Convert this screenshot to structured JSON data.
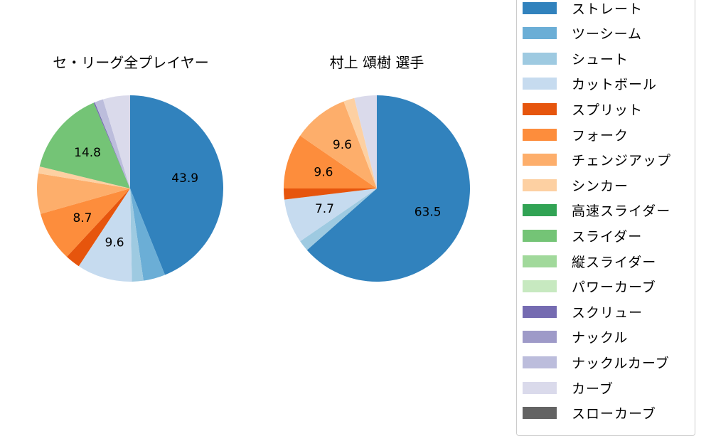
{
  "chart_data": [
    {
      "type": "pie",
      "title": "セ・リーグ全プレイヤー",
      "start_angle": 90,
      "direction": "clockwise",
      "categories": [
        "ストレート",
        "ツーシーム",
        "シュート",
        "カットボール",
        "スプリット",
        "フォーク",
        "チェンジアップ",
        "シンカー",
        "スライダー",
        "スクリュー",
        "ナックルカーブ",
        "カーブ"
      ],
      "values": [
        43.9,
        3.8,
        2.0,
        9.6,
        2.6,
        8.7,
        7.0,
        1.2,
        14.8,
        0.2,
        1.5,
        4.7
      ],
      "labels_shown": [
        "43.9",
        "",
        "",
        "9.6",
        "",
        "8.7",
        "",
        "",
        "14.8",
        "",
        "",
        ""
      ]
    },
    {
      "type": "pie",
      "title": "村上 頌樹  選手",
      "start_angle": 90,
      "direction": "clockwise",
      "categories": [
        "ストレート",
        "シュート",
        "カットボール",
        "スプリット",
        "フォーク",
        "チェンジアップ",
        "シンカー",
        "カーブ"
      ],
      "values": [
        63.5,
        1.9,
        7.7,
        1.9,
        9.6,
        9.6,
        1.9,
        3.9
      ],
      "labels_shown": [
        "63.5",
        "",
        "7.7",
        "",
        "9.6",
        "9.6",
        "",
        ""
      ]
    }
  ],
  "titles": {
    "left": "セ・リーグ全プレイヤー",
    "right": "村上 頌樹  選手"
  },
  "colors": {
    "ストレート": "#3182bd",
    "ツーシーム": "#6baed6",
    "シュート": "#9ecae1",
    "カットボール": "#c6dbef",
    "スプリット": "#e6550d",
    "フォーク": "#fd8d3c",
    "チェンジアップ": "#fdae6b",
    "シンカー": "#fdd0a2",
    "高速スライダー": "#31a354",
    "スライダー": "#74c476",
    "縦スライダー": "#a1d99b",
    "パワーカーブ": "#c7e9c0",
    "スクリュー": "#756bb1",
    "ナックル": "#9e9ac8",
    "ナックルカーブ": "#bcbddc",
    "カーブ": "#dadaeb",
    "スローカーブ": "#636363"
  },
  "legend": {
    "items": [
      {
        "label": "ストレート",
        "color": "#3182bd"
      },
      {
        "label": "ツーシーム",
        "color": "#6baed6"
      },
      {
        "label": "シュート",
        "color": "#9ecae1"
      },
      {
        "label": "カットボール",
        "color": "#c6dbef"
      },
      {
        "label": "スプリット",
        "color": "#e6550d"
      },
      {
        "label": "フォーク",
        "color": "#fd8d3c"
      },
      {
        "label": "チェンジアップ",
        "color": "#fdae6b"
      },
      {
        "label": "シンカー",
        "color": "#fdd0a2"
      },
      {
        "label": "高速スライダー",
        "color": "#31a354"
      },
      {
        "label": "スライダー",
        "color": "#74c476"
      },
      {
        "label": "縦スライダー",
        "color": "#a1d99b"
      },
      {
        "label": "パワーカーブ",
        "color": "#c7e9c0"
      },
      {
        "label": "スクリュー",
        "color": "#756bb1"
      },
      {
        "label": "ナックル",
        "color": "#9e9ac8"
      },
      {
        "label": "ナックルカーブ",
        "color": "#bcbddc"
      },
      {
        "label": "カーブ",
        "color": "#dadaeb"
      },
      {
        "label": "スローカーブ",
        "color": "#636363"
      }
    ]
  }
}
